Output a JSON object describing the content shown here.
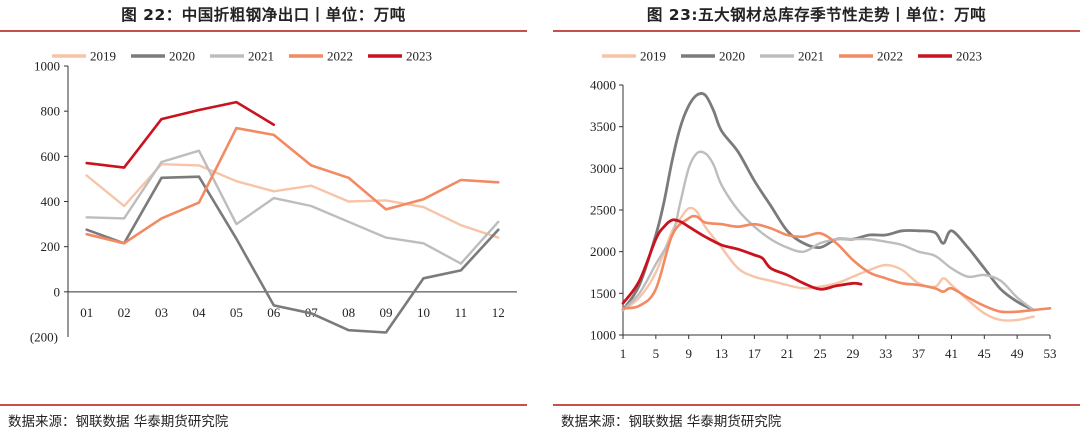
{
  "charts": [
    {
      "title": "图 22：中国折粗钢净出口丨单位：万吨",
      "source": "数据来源：钢联数据 华泰期货研究院",
      "chart_data": {
        "type": "line",
        "categories": [
          "01",
          "02",
          "03",
          "04",
          "05",
          "06",
          "07",
          "08",
          "09",
          "10",
          "11",
          "12"
        ],
        "ylim": [
          -200,
          1000
        ],
        "yticks": [
          1000,
          800,
          600,
          400,
          200,
          0
        ],
        "ytick_labels": [
          "1000",
          "800",
          "600",
          "400",
          "200",
          "0"
        ],
        "negative_label": "(200)",
        "legend_position": "top",
        "grid": false,
        "series": [
          {
            "name": "2019",
            "color": "#f7c4a8",
            "width": 2.4,
            "values": [
              515,
              380,
              565,
              560,
              490,
              445,
              470,
              400,
              405,
              375,
              295,
              240
            ]
          },
          {
            "name": "2020",
            "color": "#7b7b7b",
            "width": 2.6,
            "values": [
              275,
              215,
              505,
              510,
              235,
              -60,
              -95,
              -170,
              -180,
              60,
              95,
              275
            ]
          },
          {
            "name": "2021",
            "color": "#bdbdbd",
            "width": 2.4,
            "values": [
              330,
              325,
              575,
              625,
              300,
              415,
              380,
              310,
              240,
              215,
              125,
              310
            ]
          },
          {
            "name": "2022",
            "color": "#f28a63",
            "width": 2.6,
            "values": [
              255,
              215,
              325,
              395,
              725,
              695,
              560,
              505,
              365,
              410,
              495,
              485
            ]
          },
          {
            "name": "2023",
            "color": "#c9131e",
            "width": 2.6,
            "values": [
              570,
              550,
              765,
              805,
              840,
              740,
              null,
              null,
              null,
              null,
              null,
              null
            ]
          }
        ]
      }
    },
    {
      "title": "图 23:五大钢材总库存季节性走势丨单位：万吨",
      "source": "数据来源：钢联数据 华泰期货研究院",
      "chart_data": {
        "type": "line",
        "x": [
          1,
          53
        ],
        "xticks": [
          1,
          5,
          9,
          13,
          17,
          21,
          25,
          29,
          33,
          37,
          41,
          45,
          49,
          53
        ],
        "xtick_labels": [
          "1",
          "5",
          "9",
          "13",
          "17",
          "21",
          "25",
          "29",
          "33",
          "37",
          "41",
          "45",
          "49",
          "53"
        ],
        "ylim": [
          1000,
          4000
        ],
        "yticks": [
          4000,
          3500,
          3000,
          2500,
          2000,
          1500,
          1000
        ],
        "ytick_labels": [
          "4000",
          "3500",
          "3000",
          "2500",
          "2000",
          "1500",
          "1000"
        ],
        "legend_position": "top",
        "grid": false,
        "series": [
          {
            "name": "2019",
            "color": "#f7c4a8",
            "width": 2.4,
            "points": [
              [
                1,
                1300
              ],
              [
                3,
                1450
              ],
              [
                5,
                1750
              ],
              [
                7,
                2250
              ],
              [
                8,
                2400
              ],
              [
                9,
                2520
              ],
              [
                10,
                2480
              ],
              [
                11,
                2300
              ],
              [
                13,
                2050
              ],
              [
                15,
                1800
              ],
              [
                17,
                1700
              ],
              [
                19,
                1650
              ],
              [
                21,
                1600
              ],
              [
                23,
                1560
              ],
              [
                25,
                1580
              ],
              [
                27,
                1620
              ],
              [
                29,
                1700
              ],
              [
                31,
                1780
              ],
              [
                33,
                1840
              ],
              [
                35,
                1780
              ],
              [
                37,
                1620
              ],
              [
                39,
                1580
              ],
              [
                40,
                1680
              ],
              [
                41,
                1600
              ],
              [
                43,
                1420
              ],
              [
                45,
                1260
              ],
              [
                47,
                1180
              ],
              [
                49,
                1180
              ],
              [
                51,
                1220
              ]
            ]
          },
          {
            "name": "2020",
            "color": "#7b7b7b",
            "width": 2.8,
            "points": [
              [
                1,
                1300
              ],
              [
                3,
                1600
              ],
              [
                5,
                2200
              ],
              [
                6,
                2600
              ],
              [
                7,
                3100
              ],
              [
                8,
                3500
              ],
              [
                9,
                3750
              ],
              [
                10,
                3880
              ],
              [
                11,
                3880
              ],
              [
                12,
                3700
              ],
              [
                13,
                3450
              ],
              [
                15,
                3200
              ],
              [
                17,
                2850
              ],
              [
                19,
                2550
              ],
              [
                21,
                2250
              ],
              [
                23,
                2100
              ],
              [
                25,
                2050
              ],
              [
                27,
                2150
              ],
              [
                29,
                2150
              ],
              [
                31,
                2200
              ],
              [
                33,
                2200
              ],
              [
                35,
                2250
              ],
              [
                37,
                2250
              ],
              [
                39,
                2230
              ],
              [
                40,
                2100
              ],
              [
                41,
                2250
              ],
              [
                43,
                2050
              ],
              [
                45,
                1800
              ],
              [
                47,
                1550
              ],
              [
                49,
                1400
              ],
              [
                51,
                1300
              ]
            ]
          },
          {
            "name": "2021",
            "color": "#bdbdbd",
            "width": 2.4,
            "points": [
              [
                1,
                1300
              ],
              [
                3,
                1500
              ],
              [
                5,
                1850
              ],
              [
                7,
                2200
              ],
              [
                8,
                2600
              ],
              [
                9,
                3000
              ],
              [
                10,
                3180
              ],
              [
                11,
                3180
              ],
              [
                12,
                3050
              ],
              [
                13,
                2800
              ],
              [
                15,
                2500
              ],
              [
                17,
                2300
              ],
              [
                19,
                2150
              ],
              [
                21,
                2050
              ],
              [
                23,
                2000
              ],
              [
                25,
                2100
              ],
              [
                27,
                2150
              ],
              [
                29,
                2150
              ],
              [
                31,
                2150
              ],
              [
                33,
                2120
              ],
              [
                35,
                2080
              ],
              [
                37,
                2000
              ],
              [
                39,
                1950
              ],
              [
                41,
                1800
              ],
              [
                43,
                1700
              ],
              [
                45,
                1720
              ],
              [
                47,
                1650
              ],
              [
                49,
                1450
              ],
              [
                51,
                1300
              ]
            ]
          },
          {
            "name": "2022",
            "color": "#f28a63",
            "width": 2.6,
            "points": [
              [
                1,
                1320
              ],
              [
                3,
                1350
              ],
              [
                5,
                1550
              ],
              [
                7,
                2200
              ],
              [
                9,
                2400
              ],
              [
                10,
                2420
              ],
              [
                11,
                2350
              ],
              [
                13,
                2330
              ],
              [
                15,
                2300
              ],
              [
                17,
                2330
              ],
              [
                19,
                2280
              ],
              [
                21,
                2200
              ],
              [
                23,
                2180
              ],
              [
                25,
                2220
              ],
              [
                27,
                2100
              ],
              [
                29,
                1900
              ],
              [
                31,
                1750
              ],
              [
                33,
                1680
              ],
              [
                35,
                1620
              ],
              [
                37,
                1600
              ],
              [
                39,
                1560
              ],
              [
                40,
                1520
              ],
              [
                41,
                1560
              ],
              [
                43,
                1450
              ],
              [
                45,
                1350
              ],
              [
                47,
                1280
              ],
              [
                49,
                1280
              ],
              [
                51,
                1300
              ],
              [
                53,
                1320
              ]
            ]
          },
          {
            "name": "2023",
            "color": "#c9131e",
            "width": 2.8,
            "points": [
              [
                1,
                1380
              ],
              [
                3,
                1650
              ],
              [
                5,
                2150
              ],
              [
                6,
                2300
              ],
              [
                7,
                2380
              ],
              [
                8,
                2360
              ],
              [
                9,
                2300
              ],
              [
                11,
                2180
              ],
              [
                13,
                2080
              ],
              [
                15,
                2030
              ],
              [
                17,
                1960
              ],
              [
                18,
                1920
              ],
              [
                19,
                1800
              ],
              [
                21,
                1720
              ],
              [
                23,
                1620
              ],
              [
                25,
                1550
              ],
              [
                27,
                1590
              ],
              [
                29,
                1620
              ],
              [
                30,
                1610
              ]
            ]
          }
        ]
      }
    }
  ]
}
